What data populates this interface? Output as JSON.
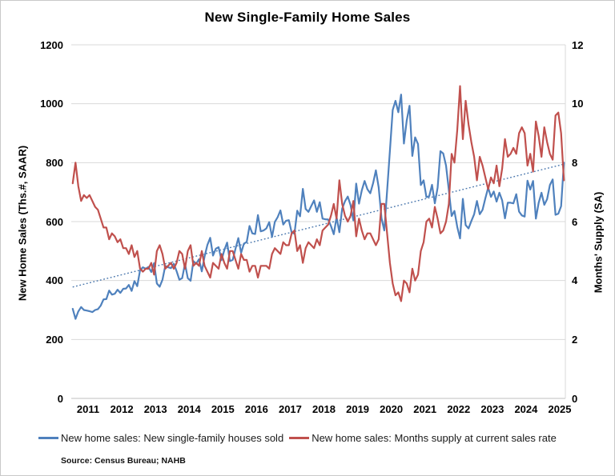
{
  "chart_data": {
    "type": "line",
    "title": "New Single-Family Home Sales",
    "frequency": "monthly",
    "x_range": "Jan 2011 - Aug 2025",
    "x_tick_labels": [
      "2011",
      "2012",
      "2013",
      "2014",
      "2015",
      "2016",
      "2017",
      "2018",
      "2019",
      "2020",
      "2021",
      "2022",
      "2023",
      "2024",
      "2025"
    ],
    "left_axis": {
      "label": "New Home Sales (Ths.#, SAAR)",
      "range": [
        0,
        1200
      ],
      "tick_values": [
        0,
        200,
        400,
        600,
        800,
        1000,
        1200
      ],
      "tick_labels": [
        "0",
        "200",
        "400",
        "600",
        "800",
        "1000",
        "1200"
      ]
    },
    "right_axis": {
      "label": "Months' Supply (SA)",
      "range": [
        0,
        12
      ],
      "tick_values": [
        0,
        2,
        4,
        6,
        8,
        10,
        12
      ],
      "tick_labels": [
        "0",
        "2",
        "4",
        "6",
        "8",
        "10",
        "12"
      ]
    },
    "grid": "horizontal",
    "legend_position": "bottom",
    "series": [
      {
        "name": "New home sales: New single-family houses sold",
        "axis": "left",
        "color": "#4F81BD",
        "values": [
          304,
          270,
          295,
          310,
          300,
          298,
          296,
          293,
          300,
          303,
          315,
          336,
          337,
          366,
          352,
          355,
          369,
          358,
          372,
          373,
          385,
          365,
          398,
          381,
          435,
          445,
          440,
          446,
          429,
          459,
          390,
          379,
          403,
          450,
          445,
          442,
          457,
          432,
          403,
          408,
          457,
          408,
          399,
          466,
          457,
          472,
          431,
          482,
          521,
          545,
          485,
          508,
          513,
          469,
          503,
          529,
          466,
          470,
          508,
          544,
          494,
          525,
          531,
          585,
          560,
          558,
          622,
          567,
          570,
          577,
          598,
          548,
          599,
          615,
          638,
          590,
          603,
          605,
          563,
          559,
          637,
          618,
          711,
          643,
          633,
          653,
          672,
          633,
          666,
          610,
          608,
          607,
          585,
          557,
          615,
          564,
          644,
          669,
          685,
          656,
          604,
          729,
          661,
          706,
          738,
          710,
          696,
          730,
          774,
          716,
          612,
          570,
          704,
          840,
          979,
          1010,
          971,
          1031,
          865,
          943,
          993,
          823,
          886,
          863,
          724,
          740,
          683,
          686,
          725,
          662,
          715,
          839,
          831,
          790,
          707,
          619,
          636,
          582,
          543,
          677,
          588,
          577,
          602,
          625,
          670,
          625,
          640,
          679,
          715,
          684,
          702,
          668,
          698,
          672,
          611,
          664,
          664,
          662,
          693,
          634,
          621,
          617,
          739,
          709,
          738,
          610,
          664,
          698,
          657,
          676,
          724,
          743,
          623,
          627,
          652,
          800
        ]
      },
      {
        "name": "New home sales: Months supply at current sales rate",
        "axis": "right",
        "color": "#C0504D",
        "values": [
          7.3,
          8.0,
          7.2,
          6.7,
          6.9,
          6.8,
          6.9,
          6.7,
          6.5,
          6.4,
          6.1,
          5.8,
          5.8,
          5.4,
          5.6,
          5.5,
          5.3,
          5.4,
          5.1,
          5.1,
          4.9,
          5.2,
          4.8,
          5.0,
          4.4,
          4.3,
          4.4,
          4.4,
          4.6,
          4.2,
          5.0,
          5.2,
          4.9,
          4.4,
          4.5,
          4.6,
          4.4,
          4.6,
          5.0,
          4.9,
          4.4,
          5.0,
          5.2,
          4.5,
          4.6,
          4.5,
          5.0,
          4.5,
          4.3,
          4.1,
          4.6,
          4.5,
          4.4,
          4.9,
          4.6,
          4.4,
          5.0,
          5.0,
          4.7,
          4.4,
          4.9,
          4.7,
          4.7,
          4.3,
          4.5,
          4.5,
          4.1,
          4.5,
          4.5,
          4.5,
          4.4,
          4.9,
          5.1,
          5.0,
          4.9,
          5.3,
          5.2,
          5.2,
          5.6,
          5.7,
          5.0,
          5.2,
          4.6,
          5.1,
          5.3,
          5.2,
          5.1,
          5.4,
          5.2,
          5.7,
          5.8,
          5.9,
          6.2,
          6.6,
          6.1,
          7.4,
          6.6,
          6.2,
          6.0,
          6.2,
          6.7,
          5.5,
          6.1,
          5.7,
          5.4,
          5.6,
          5.6,
          5.4,
          5.2,
          5.4,
          6.6,
          6.6,
          5.6,
          4.6,
          3.9,
          3.5,
          3.6,
          3.3,
          4.0,
          3.9,
          3.6,
          4.4,
          4.0,
          4.2,
          5.0,
          5.3,
          6.0,
          6.1,
          5.8,
          6.5,
          6.1,
          5.6,
          5.7,
          6.0,
          6.6,
          8.3,
          8.0,
          9.1,
          10.6,
          8.8,
          10.1,
          9.3,
          8.7,
          8.2,
          7.4,
          8.2,
          7.9,
          7.5,
          7.1,
          7.5,
          7.3,
          7.9,
          7.2,
          7.8,
          8.8,
          8.2,
          8.3,
          8.5,
          8.3,
          9.0,
          9.2,
          9.0,
          7.9,
          8.3,
          7.7,
          9.4,
          8.9,
          8.2,
          9.2,
          8.7,
          8.3,
          8.1,
          9.6,
          9.7,
          9.0,
          7.4
        ]
      }
    ],
    "trend_line": {
      "series": "New home sales: New single-family houses sold",
      "style": "dotted",
      "color": "#4A77AD",
      "axis": "left",
      "start": 378,
      "end": 795
    },
    "source_note": "Source: Census Bureau; NAHB",
    "colors": {
      "sales_line": "#4F81BD",
      "supply_line": "#C0504D",
      "gridline": "#D9D9D9",
      "axis_line": "#BFBFBF"
    }
  }
}
